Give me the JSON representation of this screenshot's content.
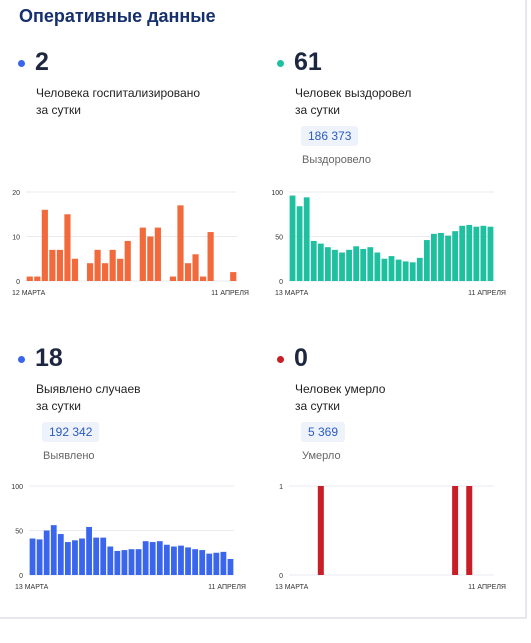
{
  "page": {
    "title": "Оперативные данные"
  },
  "colors": {
    "hospital": "#f26a3c",
    "recovered": "#1ec0a0",
    "cases": "#3a66ee",
    "deaths": "#c81e28",
    "title": "#16306e"
  },
  "panels": [
    {
      "id": "hospitalized",
      "value": "2",
      "desc_line1": "Человека госпитализировано",
      "desc_line2": "за сутки",
      "total": "",
      "total_label": ""
    },
    {
      "id": "recovered",
      "value": "61",
      "desc_line1": "Человек выздоровел",
      "desc_line2": "за сутки",
      "total": "186 373",
      "total_label": "Выздоровело"
    },
    {
      "id": "cases",
      "value": "18",
      "desc_line1": "Выявлено случаев",
      "desc_line2": "за сутки",
      "total": "192 342",
      "total_label": "Выявлено"
    },
    {
      "id": "deaths",
      "value": "0",
      "desc_line1": "Человек умерло",
      "desc_line2": "за сутки",
      "total": "5 369",
      "total_label": "Умерло"
    }
  ],
  "chart_data": [
    {
      "type": "bar",
      "series": [
        {
          "values": [
            1,
            1,
            16,
            7,
            7,
            15,
            5,
            0,
            4,
            7,
            4,
            7,
            5,
            9,
            0,
            12,
            10,
            12,
            0,
            1,
            17,
            4,
            6,
            1,
            11,
            0,
            0,
            2
          ]
        }
      ],
      "ylim": [
        0,
        20
      ],
      "yticks": [
        "0",
        "10",
        "20"
      ],
      "xlabel_start": "12 МАРТА",
      "xlabel_end": "11 АПРЕЛЯ",
      "color": "#f26a3c"
    },
    {
      "type": "bar",
      "series": [
        {
          "values": [
            96,
            84,
            94,
            45,
            42,
            38,
            35,
            32,
            35,
            39,
            36,
            38,
            32,
            25,
            28,
            24,
            22,
            21,
            26,
            46,
            53,
            54,
            51,
            56,
            62,
            63,
            61,
            62,
            61
          ]
        }
      ],
      "ylim": [
        0,
        100
      ],
      "yticks": [
        "0",
        "50",
        "100"
      ],
      "xlabel_start": "13 МАРТА",
      "xlabel_end": "11 АПРЕЛЯ",
      "color": "#1ec0a0"
    },
    {
      "type": "bar",
      "series": [
        {
          "values": [
            41,
            40,
            50,
            56,
            46,
            37,
            39,
            41,
            54,
            42,
            42,
            32,
            27,
            28,
            29,
            29,
            38,
            37,
            38,
            34,
            32,
            33,
            31,
            29,
            28,
            24,
            25,
            26,
            18
          ]
        }
      ],
      "ylim": [
        0,
        100
      ],
      "yticks": [
        "0",
        "50",
        "100"
      ],
      "xlabel_start": "13 МАРТА",
      "xlabel_end": "11 АПРЕЛЯ",
      "color": "#3a66ee"
    },
    {
      "type": "bar",
      "series": [
        {
          "values": [
            0,
            0,
            0,
            0,
            1,
            0,
            0,
            0,
            0,
            0,
            0,
            0,
            0,
            0,
            0,
            0,
            0,
            0,
            0,
            0,
            0,
            0,
            0,
            1,
            0,
            1,
            0,
            0,
            0
          ]
        }
      ],
      "ylim": [
        0,
        1
      ],
      "yticks": [
        "0",
        "1"
      ],
      "xlabel_start": "13 МАРТА",
      "xlabel_end": "11 АПРЕЛЯ",
      "color": "#c81e28"
    }
  ]
}
